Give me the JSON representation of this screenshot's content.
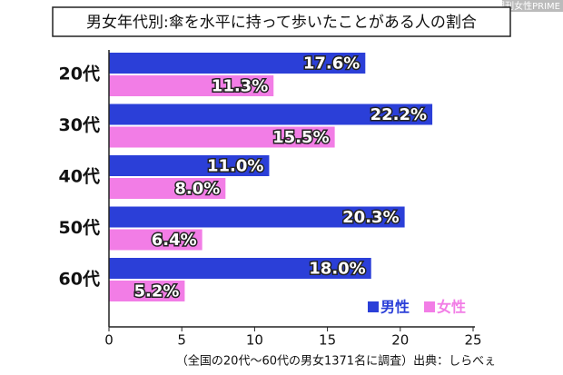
{
  "watermark": "週刊女性PRIME",
  "chart_data": {
    "type": "bar",
    "orientation": "horizontal",
    "title": "男女年代別:傘を水平に持って歩いたことがある人の割合",
    "categories": [
      "20代",
      "30代",
      "40代",
      "50代",
      "60代"
    ],
    "series": [
      {
        "name": "男性",
        "color": "#2b3fd8",
        "values": [
          17.6,
          22.2,
          11.0,
          20.3,
          18.0
        ],
        "value_labels": [
          "17.6%",
          "22.2%",
          "11.0%",
          "20.3%",
          "18.0%"
        ]
      },
      {
        "name": "女性",
        "color": "#f27de6",
        "values": [
          11.3,
          15.5,
          8.0,
          6.4,
          5.2
        ],
        "value_labels": [
          "11.3%",
          "15.5%",
          "8.0%",
          "6.4%",
          "5.2%"
        ]
      }
    ],
    "xlim": [
      0,
      25
    ],
    "xticks": [
      0,
      5,
      10,
      15,
      20,
      25
    ],
    "legend": "lower right",
    "note": "（全国の20代～60代の男女1371名に調査）出典：しらべぇ"
  }
}
